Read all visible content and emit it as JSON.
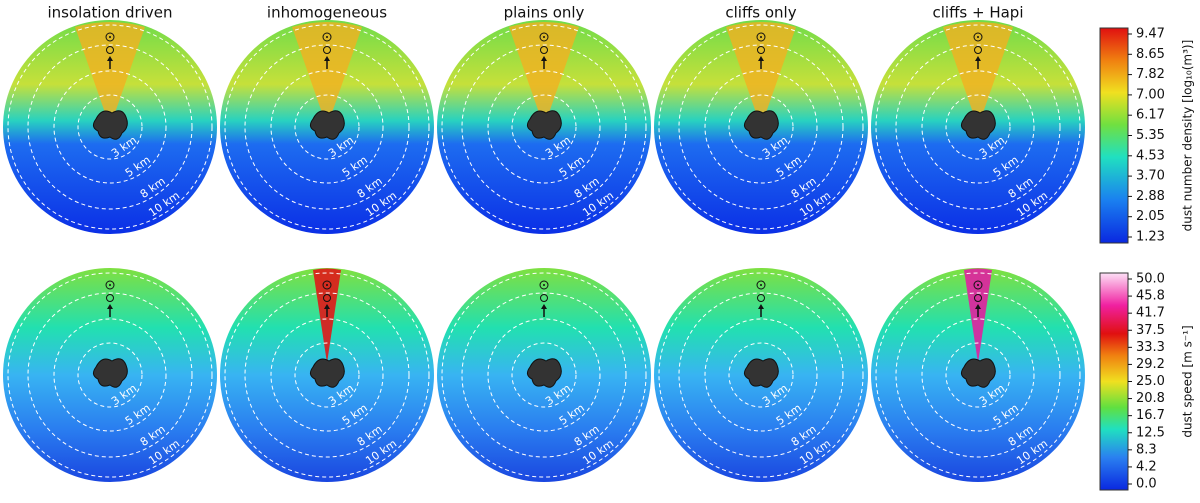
{
  "panels": {
    "titles": [
      "insolation driven",
      "inhomogeneous",
      "plains only",
      "cliffs only",
      "cliffs + Hapi"
    ],
    "rings": [
      "3 km",
      "5 km",
      "8 km",
      "10 km"
    ]
  },
  "colorbars": [
    {
      "label": "dust number density [log₁₀(m³)]",
      "ticks": [
        "9.47",
        "8.65",
        "7.82",
        "7.00",
        "6.17",
        "5.35",
        "4.53",
        "3.70",
        "2.88",
        "2.05",
        "1.23"
      ]
    },
    {
      "label": "dust speed [m s⁻¹]",
      "ticks": [
        "50.0",
        "45.8",
        "41.7",
        "37.5",
        "33.3",
        "29.2",
        "25.0",
        "20.8",
        "16.7",
        "12.5",
        "8.3",
        "4.2",
        "0.0"
      ]
    }
  ]
}
